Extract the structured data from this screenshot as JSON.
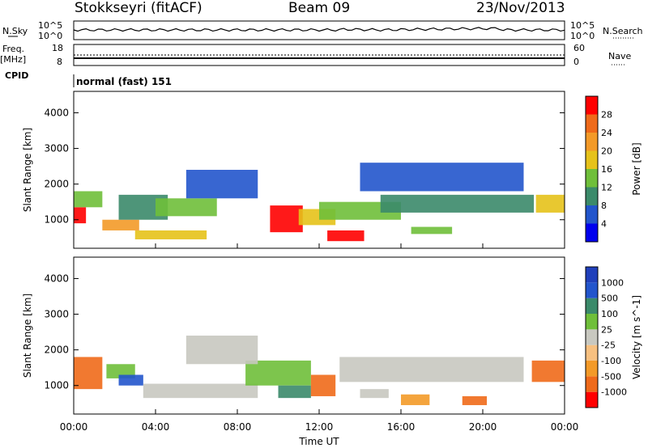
{
  "header": {
    "station": "Stokkseyri (fitACF)",
    "beam": "Beam 09",
    "date": "23/Nov/2013"
  },
  "side_labels": {
    "nsky": "N.Sky",
    "nsearch": "N.Search",
    "freq": "Freq.",
    "freq_unit": "[MHz]",
    "nave": "Nave",
    "cpid": "CPID",
    "nsky_top": "10^5",
    "nsky_bottom": "10^0",
    "nsearch_top": "10^5",
    "nsearch_bottom": "10^0",
    "freq_top": "18",
    "freq_bottom": "8",
    "nave_top": "60",
    "nave_bottom": "0"
  },
  "mode_text": "normal (fast) 151",
  "chart_data": [
    {
      "type": "heatmap",
      "panel": "power",
      "ylabel": "Slant Range [km]",
      "xlabel": "Time UT",
      "x_ticks": [
        "00:00",
        "04:00",
        "08:00",
        "12:00",
        "16:00",
        "20:00",
        "00:00"
      ],
      "x_tick_hours": [
        0,
        4,
        8,
        12,
        16,
        20,
        24
      ],
      "y_ticks": [
        1000,
        2000,
        3000,
        4000
      ],
      "ylim": [
        200,
        4600
      ],
      "colorbar_label": "Power [dB]",
      "colorbar_ticks": [
        "28",
        "24",
        "20",
        "16",
        "12",
        "8",
        "4"
      ],
      "colors": [
        "#0000ee",
        "#2255cc",
        "#3b8a6a",
        "#6fbf3a",
        "#e6c21a",
        "#f39a28",
        "#ef6a1a",
        "#ff0000"
      ],
      "regions": [
        {
          "t0": 0.0,
          "t1": 0.6,
          "r0": 900,
          "r1": 1350,
          "level": 7
        },
        {
          "t0": 0.0,
          "t1": 1.4,
          "r0": 1350,
          "r1": 1800,
          "level": 3
        },
        {
          "t0": 1.4,
          "t1": 3.2,
          "r0": 700,
          "r1": 1000,
          "level": 5
        },
        {
          "t0": 2.2,
          "t1": 4.6,
          "r0": 1000,
          "r1": 1700,
          "level": 2
        },
        {
          "t0": 3.0,
          "t1": 6.5,
          "r0": 450,
          "r1": 700,
          "level": 4
        },
        {
          "t0": 4.0,
          "t1": 7.0,
          "r0": 1100,
          "r1": 1600,
          "level": 3
        },
        {
          "t0": 9.6,
          "t1": 11.2,
          "r0": 650,
          "r1": 1400,
          "level": 7
        },
        {
          "t0": 11.0,
          "t1": 12.8,
          "r0": 850,
          "r1": 1300,
          "level": 4
        },
        {
          "t0": 12.4,
          "t1": 14.2,
          "r0": 400,
          "r1": 700,
          "level": 7
        },
        {
          "t0": 12.0,
          "t1": 16.0,
          "r0": 1000,
          "r1": 1500,
          "level": 3
        },
        {
          "t0": 15.0,
          "t1": 22.5,
          "r0": 1200,
          "r1": 1700,
          "level": 2
        },
        {
          "t0": 16.5,
          "t1": 18.5,
          "r0": 600,
          "r1": 800,
          "level": 3
        },
        {
          "t0": 22.6,
          "t1": 24.0,
          "r0": 1200,
          "r1": 1700,
          "level": 4
        },
        {
          "t0": 14.0,
          "t1": 22.0,
          "r0": 1800,
          "r1": 2600,
          "level": 1
        },
        {
          "t0": 5.5,
          "t1": 9.0,
          "r0": 1600,
          "r1": 2400,
          "level": 1
        }
      ]
    },
    {
      "type": "heatmap",
      "panel": "velocity",
      "ylabel": "Slant Range [km]",
      "xlabel": "Time UT",
      "x_ticks": [
        "00:00",
        "04:00",
        "08:00",
        "12:00",
        "16:00",
        "20:00",
        "00:00"
      ],
      "x_tick_hours": [
        0,
        4,
        8,
        12,
        16,
        20,
        24
      ],
      "y_ticks": [
        1000,
        2000,
        3000,
        4000
      ],
      "ylim": [
        200,
        4600
      ],
      "colorbar_label": "Velocity [m s^-1]",
      "colorbar_ticks": [
        "1000",
        "500",
        "100",
        "25",
        "-25",
        "-100",
        "-500",
        "-1000"
      ],
      "colors": [
        "#ff0000",
        "#ef6a1a",
        "#f39a28",
        "#f7c080",
        "#c8c8c0",
        "#6fbf3a",
        "#3b8a6a",
        "#2255cc",
        "#2040bb"
      ],
      "regions": [
        {
          "t0": 0.0,
          "t1": 1.4,
          "r0": 900,
          "r1": 1800,
          "level": 1
        },
        {
          "t0": 1.6,
          "t1": 3.0,
          "r0": 1200,
          "r1": 1600,
          "level": 5
        },
        {
          "t0": 2.2,
          "t1": 3.4,
          "r0": 1000,
          "r1": 1300,
          "level": 7
        },
        {
          "t0": 3.4,
          "t1": 9.0,
          "r0": 650,
          "r1": 1050,
          "level": 4
        },
        {
          "t0": 8.4,
          "t1": 11.6,
          "r0": 1000,
          "r1": 1700,
          "level": 5
        },
        {
          "t0": 10.0,
          "t1": 11.6,
          "r0": 650,
          "r1": 1000,
          "level": 6
        },
        {
          "t0": 11.6,
          "t1": 12.8,
          "r0": 700,
          "r1": 1300,
          "level": 1
        },
        {
          "t0": 13.0,
          "t1": 22.0,
          "r0": 1100,
          "r1": 1800,
          "level": 4
        },
        {
          "t0": 14.0,
          "t1": 15.4,
          "r0": 650,
          "r1": 900,
          "level": 4
        },
        {
          "t0": 16.0,
          "t1": 17.4,
          "r0": 450,
          "r1": 750,
          "level": 2
        },
        {
          "t0": 19.0,
          "t1": 20.2,
          "r0": 450,
          "r1": 700,
          "level": 1
        },
        {
          "t0": 22.4,
          "t1": 24.0,
          "r0": 1100,
          "r1": 1700,
          "level": 1
        },
        {
          "t0": 5.5,
          "t1": 9.0,
          "r0": 1600,
          "r1": 2400,
          "level": 4
        }
      ]
    }
  ]
}
